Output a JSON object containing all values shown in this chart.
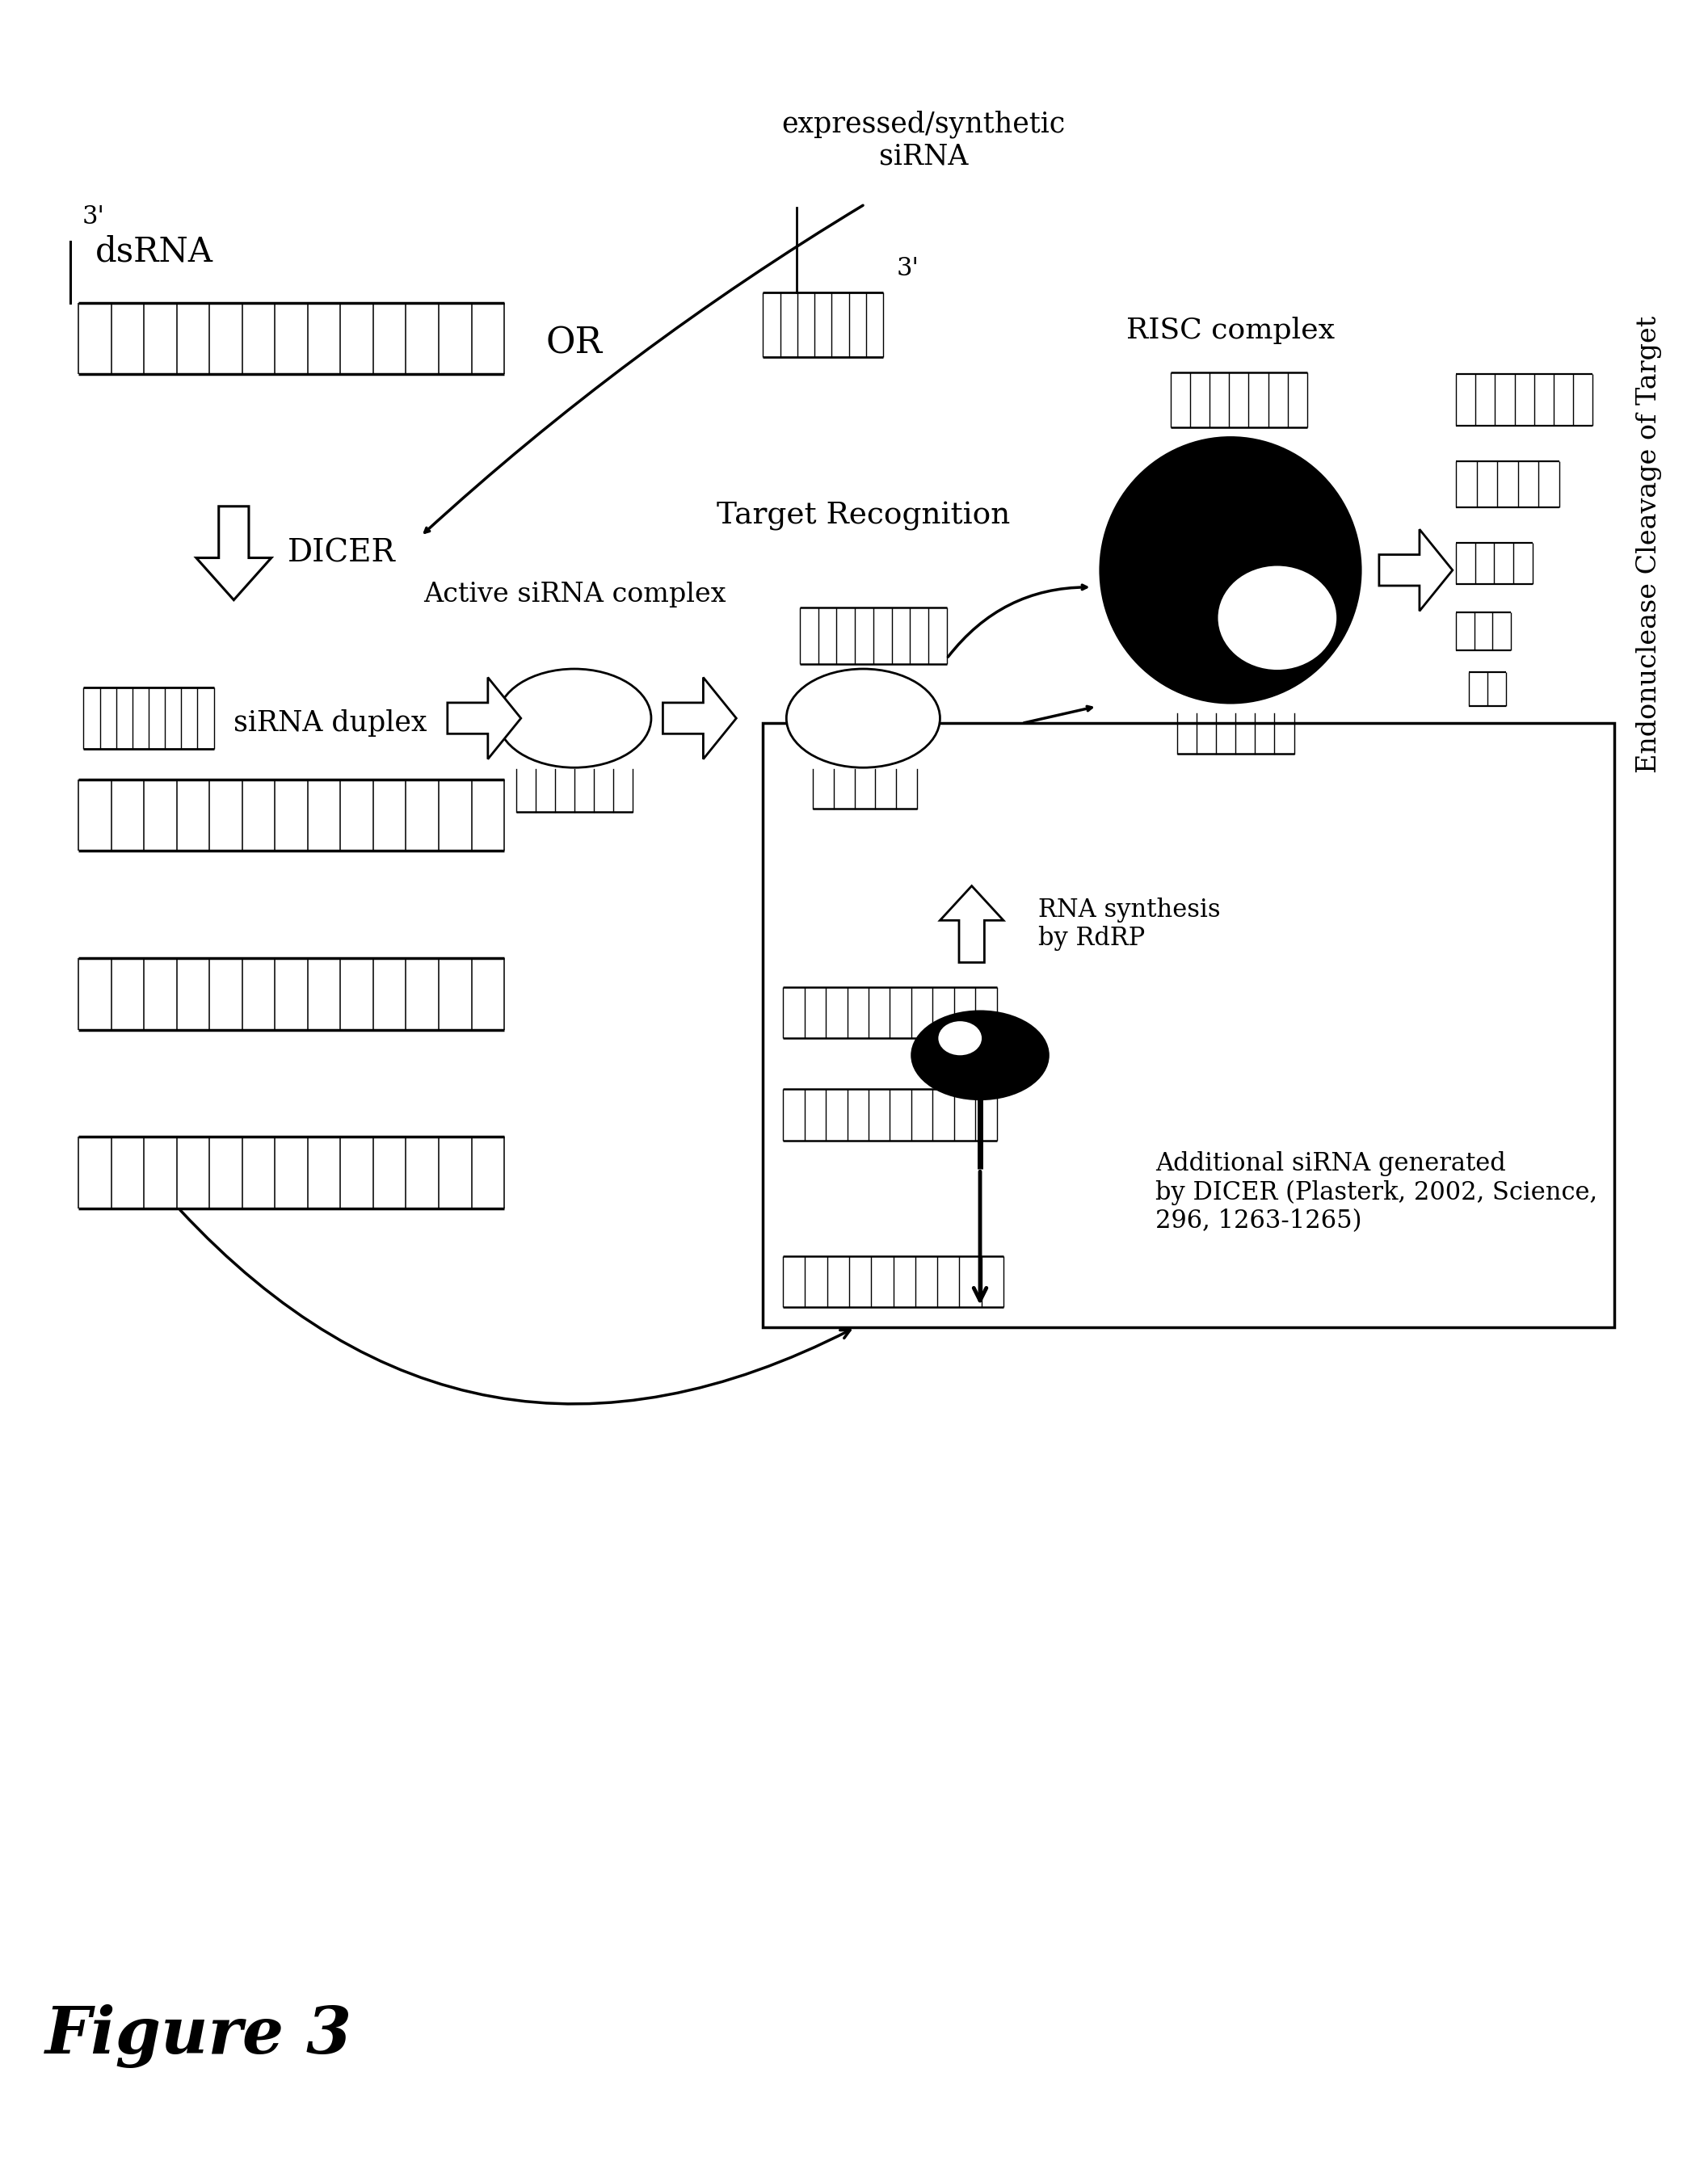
{
  "title": "Figure 3",
  "bg_color": "#ffffff",
  "fig_width": 21.14,
  "fig_height": 26.8,
  "labels": {
    "dsRNA": "dsRNA",
    "OR": "OR",
    "three_prime_1": "3'",
    "three_prime_2": "3'",
    "expressed_synthetic": "expressed/synthetic\nsiRNA",
    "DICER": "DICER",
    "siRNA_duplex": "siRNA duplex",
    "active_siRNA": "Active siRNA complex",
    "target_recognition": "Target Recognition",
    "RISC_complex": "RISC complex",
    "endo_cleavage": "Endonuclease Cleavage of Target",
    "rna_synthesis": "RNA synthesis\nby RdRP",
    "additional_siRNA": "Additional siRNA generated\nby DICER (Plasterk, 2002, Science,\n296, 1263-1265)"
  }
}
